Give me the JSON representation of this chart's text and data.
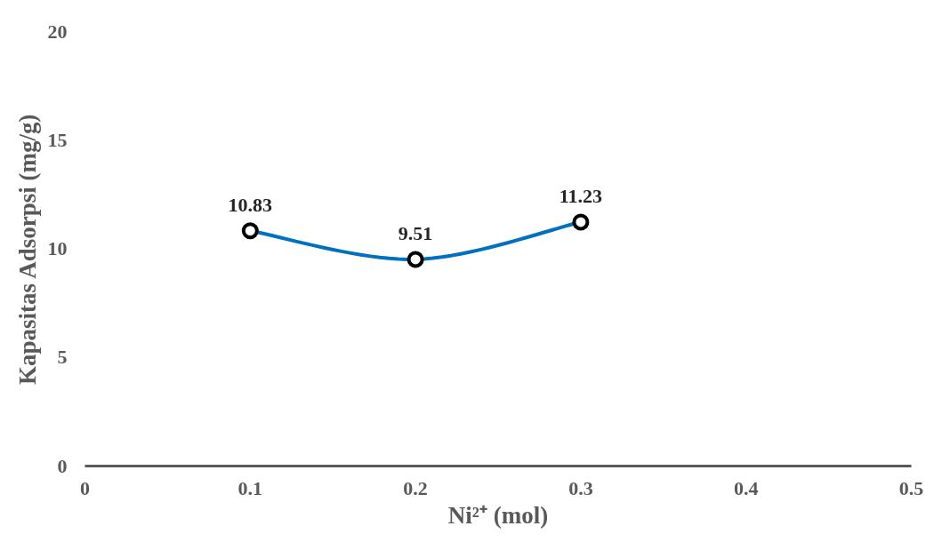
{
  "chart_data": {
    "type": "line",
    "xlabel": "Ni²⁺ (mol)",
    "ylabel": "Kapasitas Adsorpsi (mg/g)",
    "x": [
      0.1,
      0.2,
      0.3
    ],
    "series": [
      {
        "color": "#0070c0",
        "values": [
          10.83,
          9.51,
          11.23
        ]
      }
    ],
    "xlim": [
      0,
      0.5
    ],
    "xticks": [
      0,
      0.1,
      0.2,
      0.3,
      0.4,
      0.5
    ],
    "ylim": [
      0,
      20
    ],
    "yticks": [
      0,
      5,
      10,
      15,
      20
    ],
    "grid": false,
    "marker": "circle",
    "line_style": "solid",
    "data_labels": true
  }
}
